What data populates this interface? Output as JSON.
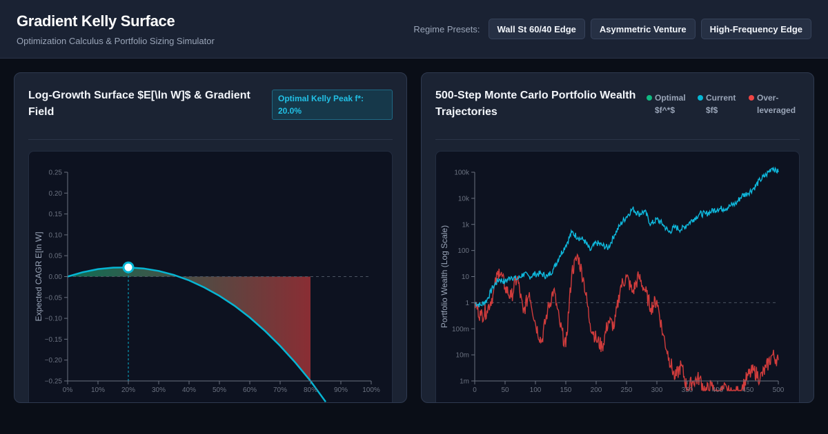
{
  "header": {
    "title": "Gradient Kelly Surface",
    "subtitle": "Optimization Calculus & Portfolio Sizing Simulator",
    "presets_label": "Regime Presets:",
    "presets": [
      "Wall St 60/40 Edge",
      "Asymmetric Venture",
      "High-Frequency Edge"
    ]
  },
  "left_panel": {
    "title": "Log-Growth Surface $E[\\ln W]$ & Gradient Field",
    "badge": "Optimal Kelly Peak f*: 20.0%"
  },
  "right_panel": {
    "title": "500-Step Monte Carlo Portfolio Wealth Trajectories",
    "legend": [
      {
        "label": "Optimal $f^*$",
        "color": "#10b981"
      },
      {
        "label": "Current $f$",
        "color": "#06b6d4"
      },
      {
        "label": "Over-leveraged",
        "color": "#ef4444"
      }
    ]
  },
  "chart_data": [
    {
      "type": "line",
      "ylabel": "Expected CAGR E[ln W]",
      "ylim": [
        -0.25,
        0.25
      ],
      "y_ticks": [
        "0.25",
        "0.20",
        "0.15",
        "0.10",
        "0.05",
        "0.00",
        "−0.05",
        "−0.10",
        "−0.15",
        "−0.20",
        "−0.25"
      ],
      "x_ticks": [
        "0%",
        "10%",
        "20%",
        "30%",
        "40%",
        "50%",
        "60%",
        "70%",
        "80%",
        "90%",
        "100%"
      ],
      "xlim": [
        0,
        1
      ],
      "x": [
        0.0,
        0.05,
        0.1,
        0.15,
        0.2,
        0.25,
        0.3,
        0.35,
        0.4,
        0.45,
        0.5,
        0.55,
        0.6,
        0.65,
        0.7,
        0.75,
        0.8,
        0.85
      ],
      "y": [
        0.0,
        0.0105,
        0.018,
        0.0215,
        0.022,
        0.0195,
        0.0135,
        0.004,
        -0.009,
        -0.026,
        -0.046,
        -0.07,
        -0.098,
        -0.13,
        -0.166,
        -0.206,
        -0.25,
        -0.3
      ],
      "optimal_f": 0.2,
      "optimal_y": 0.022,
      "shaded_region_end": 0.8,
      "colors": {
        "curve": "#06b6d4",
        "optimal": "#06b6d4",
        "shade_start": "#10b981",
        "shade_end": "#ef4444"
      }
    },
    {
      "type": "line",
      "ylabel": "Portfolio Wealth (Log Scale)",
      "y_scale": "log",
      "y_ticks": [
        "100k",
        "10k",
        "1k",
        "100",
        "10",
        "1",
        "100m",
        "10m",
        "1m"
      ],
      "x_ticks": [
        "0",
        "50",
        "100",
        "150",
        "200",
        "250",
        "300",
        "350",
        "400",
        "450",
        "500"
      ],
      "xlim": [
        0,
        500
      ],
      "series": [
        {
          "name": "Current $f$",
          "color": "#06b6d4",
          "x": [
            0,
            10,
            20,
            30,
            40,
            50,
            60,
            70,
            80,
            90,
            100,
            110,
            120,
            130,
            140,
            150,
            160,
            170,
            180,
            190,
            200,
            210,
            220,
            230,
            240,
            250,
            260,
            270,
            280,
            290,
            300,
            310,
            320,
            330,
            340,
            350,
            360,
            370,
            380,
            390,
            400,
            410,
            420,
            430,
            440,
            450,
            460,
            470,
            480,
            490,
            500
          ],
          "log10_y": [
            0,
            -0.1,
            0.1,
            0.6,
            0.9,
            0.8,
            1.0,
            0.9,
            1.1,
            1.0,
            1.1,
            1.1,
            1.0,
            1.3,
            1.8,
            2.2,
            2.7,
            2.5,
            2.4,
            2.0,
            2.3,
            2.2,
            2.1,
            2.6,
            3.0,
            3.3,
            3.6,
            3.4,
            3.5,
            3.0,
            3.2,
            3.0,
            2.7,
            2.9,
            2.8,
            3.0,
            3.2,
            3.4,
            3.4,
            3.5,
            3.6,
            3.6,
            3.7,
            3.8,
            4.1,
            4.2,
            4.4,
            4.7,
            4.9,
            5.2,
            5.0
          ]
        },
        {
          "name": "Over-leveraged",
          "color": "#ef4444",
          "x": [
            0,
            10,
            20,
            30,
            40,
            50,
            60,
            70,
            80,
            90,
            100,
            110,
            120,
            130,
            140,
            150,
            160,
            170,
            180,
            190,
            200,
            210,
            220,
            230,
            240,
            250,
            260,
            270,
            280,
            290,
            300,
            310,
            320,
            330,
            340,
            350,
            360,
            370,
            380,
            390,
            400,
            410,
            420,
            430,
            440,
            450,
            460,
            470,
            480,
            490,
            500
          ],
          "log10_y": [
            0,
            -0.5,
            -0.3,
            0.3,
            1.3,
            0.6,
            0.2,
            1.0,
            -0.4,
            0.4,
            -0.8,
            -1.5,
            -0.3,
            0.5,
            -0.8,
            -1.7,
            1.2,
            1.8,
            0.8,
            -0.8,
            -1.4,
            -1.7,
            -0.7,
            -0.9,
            0.6,
            1.0,
            0.4,
            1.0,
            0.5,
            -0.2,
            0.1,
            -1.2,
            -2.1,
            -2.9,
            -2.4,
            -3.3,
            -3.0,
            -2.9,
            -3.4,
            -3.2,
            -3.6,
            -3.3,
            -3.5,
            -3.5,
            -3.3,
            -2.8,
            -2.6,
            -2.9,
            -2.5,
            -2.0,
            -2.2
          ]
        }
      ],
      "baseline": 1
    }
  ]
}
